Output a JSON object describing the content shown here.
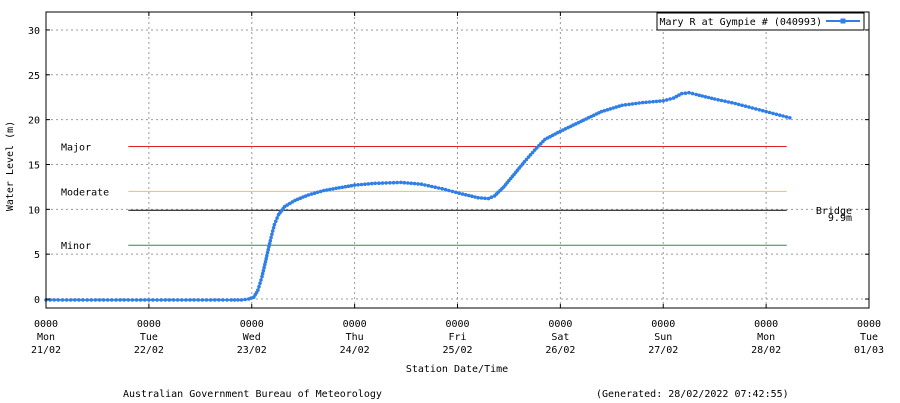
{
  "chart_data": {
    "type": "line",
    "title": "",
    "ylabel": "Water Level (m)",
    "xlabel": "Station Date/Time",
    "ylim": [
      -1,
      32
    ],
    "xlim": [
      0,
      8
    ],
    "grid": true,
    "legend_position": "top-right",
    "yticks": [
      0,
      5,
      10,
      15,
      20,
      25,
      30
    ],
    "xticks": [
      {
        "x": 0,
        "time": "0000",
        "day": "Mon",
        "date": "21/02"
      },
      {
        "x": 1,
        "time": "0000",
        "day": "Tue",
        "date": "22/02"
      },
      {
        "x": 2,
        "time": "0000",
        "day": "Wed",
        "date": "23/02"
      },
      {
        "x": 3,
        "time": "0000",
        "day": "Thu",
        "date": "24/02"
      },
      {
        "x": 4,
        "time": "0000",
        "day": "Fri",
        "date": "25/02"
      },
      {
        "x": 5,
        "time": "0000",
        "day": "Sat",
        "date": "26/02"
      },
      {
        "x": 6,
        "time": "0000",
        "day": "Sun",
        "date": "27/02"
      },
      {
        "x": 7,
        "time": "0000",
        "day": "Mon",
        "date": "28/02"
      },
      {
        "x": 8,
        "time": "0000",
        "day": "Tue",
        "date": "01/03"
      }
    ],
    "series": [
      {
        "name": "Mary R at Gympie # (040993)",
        "color": "#2f7fe6",
        "points": [
          [
            0.0,
            -0.1
          ],
          [
            0.2,
            -0.1
          ],
          [
            0.4,
            -0.1
          ],
          [
            0.6,
            -0.1
          ],
          [
            0.8,
            -0.1
          ],
          [
            1.0,
            -0.1
          ],
          [
            1.2,
            -0.1
          ],
          [
            1.4,
            -0.1
          ],
          [
            1.6,
            -0.1
          ],
          [
            1.8,
            -0.1
          ],
          [
            1.9,
            -0.1
          ],
          [
            1.97,
            0.0
          ],
          [
            2.02,
            0.2
          ],
          [
            2.06,
            1.0
          ],
          [
            2.1,
            2.5
          ],
          [
            2.14,
            4.5
          ],
          [
            2.18,
            6.5
          ],
          [
            2.22,
            8.3
          ],
          [
            2.26,
            9.4
          ],
          [
            2.32,
            10.3
          ],
          [
            2.42,
            11.0
          ],
          [
            2.55,
            11.6
          ],
          [
            2.7,
            12.1
          ],
          [
            2.85,
            12.4
          ],
          [
            3.0,
            12.7
          ],
          [
            3.2,
            12.9
          ],
          [
            3.45,
            13.0
          ],
          [
            3.65,
            12.8
          ],
          [
            3.85,
            12.3
          ],
          [
            4.05,
            11.7
          ],
          [
            4.2,
            11.3
          ],
          [
            4.3,
            11.2
          ],
          [
            4.36,
            11.5
          ],
          [
            4.45,
            12.5
          ],
          [
            4.55,
            13.9
          ],
          [
            4.65,
            15.3
          ],
          [
            4.75,
            16.6
          ],
          [
            4.85,
            17.8
          ],
          [
            5.0,
            18.7
          ],
          [
            5.2,
            19.8
          ],
          [
            5.4,
            20.9
          ],
          [
            5.6,
            21.6
          ],
          [
            5.8,
            21.9
          ],
          [
            6.0,
            22.1
          ],
          [
            6.1,
            22.4
          ],
          [
            6.18,
            22.9
          ],
          [
            6.25,
            23.0
          ],
          [
            6.32,
            22.8
          ],
          [
            6.5,
            22.3
          ],
          [
            6.7,
            21.8
          ],
          [
            6.9,
            21.2
          ],
          [
            7.1,
            20.6
          ],
          [
            7.23,
            20.2
          ]
        ]
      }
    ],
    "thresholds": [
      {
        "label": "Major",
        "value": 17,
        "color": "#dd2222"
      },
      {
        "label": "Moderate",
        "value": 12,
        "color": "#e6c74a"
      },
      {
        "label": "Minor",
        "value": 6,
        "color": "#2a8f3a"
      },
      {
        "label": "Bridge",
        "value": 9.9,
        "value_label": "9.9m",
        "color": "#000000"
      }
    ],
    "threshold_x_range": [
      0.8,
      7.2
    ]
  },
  "footer": {
    "left": "Australian Government Bureau of Meteorology",
    "right": "(Generated: 28/02/2022 07:42:55)"
  }
}
